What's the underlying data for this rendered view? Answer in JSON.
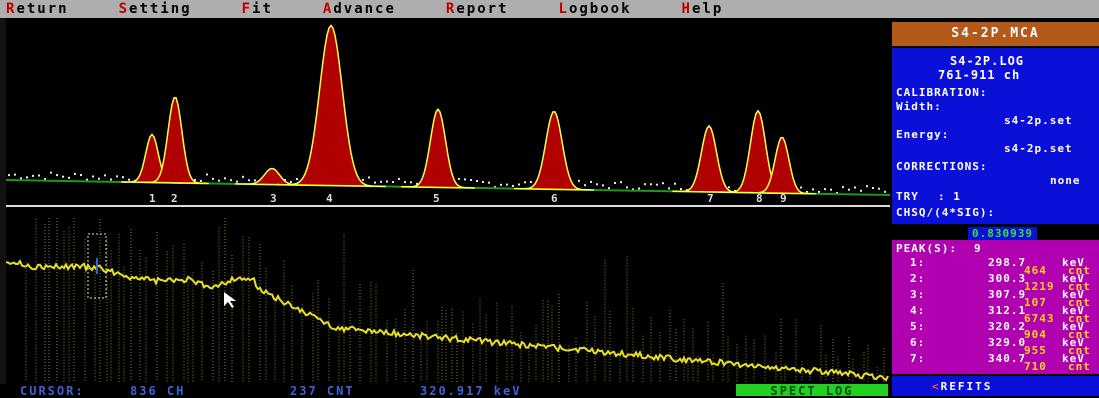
{
  "menu": [
    {
      "hot": "R",
      "rest": "eturn"
    },
    {
      "hot": "S",
      "rest": "etting"
    },
    {
      "hot": "F",
      "rest": "it"
    },
    {
      "hot": "A",
      "rest": "dvance"
    },
    {
      "hot": "R",
      "rest": "eport"
    },
    {
      "hot": "L",
      "rest": "ogbook"
    },
    {
      "hot": "H",
      "rest": "elp"
    }
  ],
  "file_header": "S4-2P.MCA",
  "info": {
    "log_file": "S4-2P.LOG",
    "channel_range": "761-911 ch",
    "calibration_label": "CALIBRATION:",
    "width_label": "Width:",
    "width_value": "s4-2p.set",
    "energy_label": "Energy:",
    "energy_value": "s4-2p.set",
    "corrections_label": "CORRECTIONS:",
    "corrections_value": "none",
    "try_label": "TRY",
    "try_value": ": 1",
    "chisq_label": "CHSQ/(4*SIG):",
    "chisq_value": "0.830939"
  },
  "peaks": {
    "header_label": "PEAK(S):",
    "count": "9",
    "items": [
      {
        "index": "1:",
        "energy": "298.7",
        "unit": "keV",
        "counts": "464",
        "counts_unit": "cnt"
      },
      {
        "index": "2:",
        "energy": "300.3",
        "unit": "keV",
        "counts": "1219",
        "counts_unit": "cnt"
      },
      {
        "index": "3:",
        "energy": "307.9",
        "unit": "keV",
        "counts": "107",
        "counts_unit": "cnt"
      },
      {
        "index": "4:",
        "energy": "312.1",
        "unit": "keV",
        "counts": "6743",
        "counts_unit": "cnt"
      },
      {
        "index": "5:",
        "energy": "320.2",
        "unit": "keV",
        "counts": "904",
        "counts_unit": "cnt"
      },
      {
        "index": "6:",
        "energy": "329.0",
        "unit": "keV",
        "counts": "955",
        "counts_unit": "cnt"
      },
      {
        "index": "7:",
        "energy": "340.7",
        "unit": "keV",
        "counts": "710",
        "counts_unit": "cnt"
      }
    ]
  },
  "refits_label": "REFITS",
  "status": {
    "cursor_label": "CURSOR:",
    "cursor_value": "836 CH",
    "counts_value": "237 CNT",
    "energy_value": "320.917 keV"
  },
  "spect_log": "SPECT LOG",
  "fit_peak_labels": [
    "1",
    "2",
    "3",
    "4",
    "5",
    "6",
    "7",
    "8",
    "9"
  ],
  "colors": {
    "peak_fill": "#b00000",
    "peak_outline": "#ffff40",
    "data_dots": "#e8e8e8",
    "baseline": "#1a9a1a",
    "spectrum_trace": "#e8e020"
  }
}
